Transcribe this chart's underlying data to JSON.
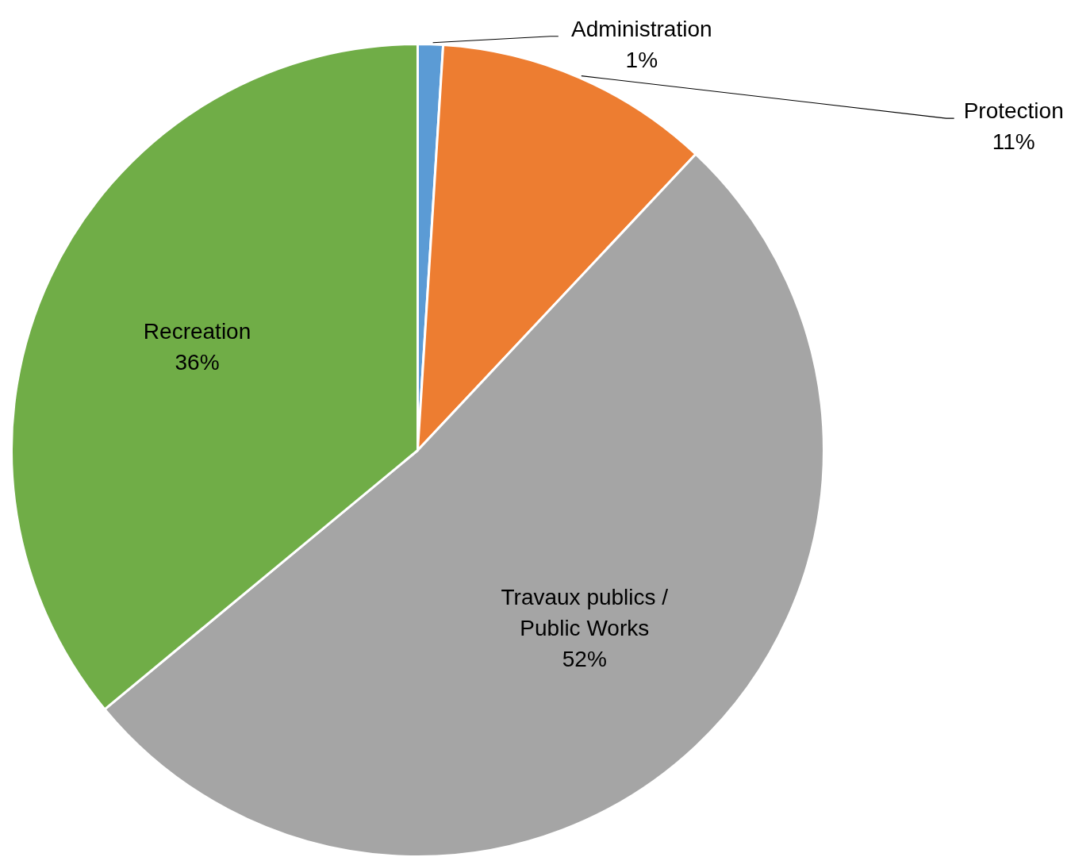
{
  "chart_data": {
    "type": "pie",
    "categories": [
      "Administration",
      "Protection",
      "Travaux publics / Public Works",
      "Recreation"
    ],
    "values": [
      1,
      11,
      52,
      36
    ],
    "value_labels": [
      "1%",
      "11%",
      "52%",
      "36%"
    ],
    "colors": [
      "#5b9bd5",
      "#ed7d31",
      "#a5a5a5",
      "#70ad47"
    ]
  }
}
